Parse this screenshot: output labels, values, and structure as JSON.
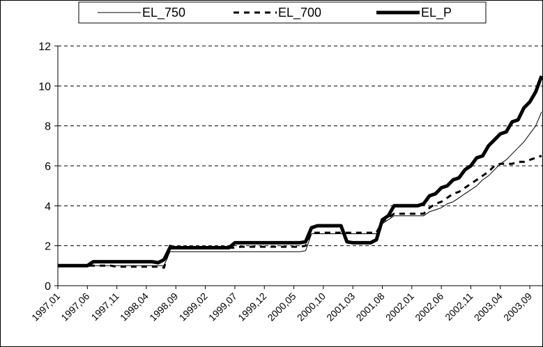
{
  "chart_data": {
    "type": "line",
    "categories": [
      "1997,01",
      null,
      null,
      null,
      null,
      "1997,06",
      null,
      null,
      null,
      null,
      "1997,11",
      null,
      null,
      null,
      null,
      "1998,04",
      null,
      null,
      null,
      null,
      "1998,09",
      null,
      null,
      null,
      null,
      "1999,02",
      null,
      null,
      null,
      null,
      "1999,07",
      null,
      null,
      null,
      null,
      "1999,12",
      null,
      null,
      null,
      null,
      "2000,05",
      null,
      null,
      null,
      null,
      "2000,10",
      null,
      null,
      null,
      null,
      "2001,03",
      null,
      null,
      null,
      null,
      "2001,08",
      null,
      null,
      null,
      null,
      "2002,01",
      null,
      null,
      null,
      null,
      "2002,06",
      null,
      null,
      null,
      null,
      "2002,11",
      null,
      null,
      null,
      null,
      "2003,04",
      null,
      null,
      null,
      null,
      "2003,09",
      null,
      null
    ],
    "series": [
      {
        "name": "EL_750",
        "color": "#000000",
        "width": 1,
        "dash": "none",
        "values": [
          1,
          1,
          1,
          1,
          1,
          1,
          1,
          1,
          1,
          1,
          1,
          1,
          1,
          1,
          1,
          1,
          1,
          1,
          1,
          1.7,
          1.7,
          1.7,
          1.7,
          1.7,
          1.7,
          1.7,
          1.7,
          1.7,
          1.7,
          1.7,
          1.7,
          1.7,
          1.7,
          1.7,
          1.7,
          1.7,
          1.7,
          1.7,
          1.7,
          1.7,
          1.7,
          1.7,
          1.75,
          2.6,
          2.6,
          2.6,
          2.6,
          2.6,
          2.6,
          2.6,
          2.6,
          2.6,
          2.6,
          2.6,
          2.6,
          3.1,
          3.3,
          3.5,
          3.5,
          3.5,
          3.5,
          3.5,
          3.5,
          3.7,
          3.8,
          3.9,
          4.1,
          4.2,
          4.4,
          4.6,
          4.8,
          5.0,
          5.3,
          5.5,
          5.8,
          6.1,
          6.3,
          6.6,
          6.9,
          7.2,
          7.6,
          8.0,
          8.7
        ]
      },
      {
        "name": "EL_700",
        "color": "#000000",
        "width": 3,
        "dash": "8 7",
        "values": [
          1,
          1,
          1,
          1,
          1,
          1,
          1,
          1,
          1,
          1,
          0.95,
          0.95,
          0.95,
          0.95,
          0.95,
          0.95,
          0.95,
          0.95,
          0.9,
          2.0,
          1.9,
          1.9,
          1.9,
          1.9,
          1.9,
          1.9,
          1.9,
          1.9,
          1.9,
          1.9,
          1.9,
          1.95,
          1.95,
          1.95,
          1.95,
          1.95,
          1.95,
          1.95,
          1.95,
          1.95,
          1.95,
          1.95,
          2.0,
          2.65,
          2.65,
          2.65,
          2.65,
          2.65,
          2.65,
          2.65,
          2.65,
          2.65,
          2.65,
          2.65,
          2.65,
          3.2,
          3.4,
          3.6,
          3.6,
          3.6,
          3.6,
          3.6,
          3.6,
          3.9,
          4.1,
          4.2,
          4.4,
          4.6,
          4.7,
          4.9,
          5.1,
          5.3,
          5.5,
          5.7,
          6.0,
          6.1,
          6.1,
          6.1,
          6.2,
          6.2,
          6.3,
          6.4,
          6.5
        ]
      },
      {
        "name": "EL_P",
        "color": "#000000",
        "width": 5,
        "dash": "none",
        "values": [
          1,
          1,
          1,
          1,
          1,
          1,
          1.2,
          1.2,
          1.2,
          1.2,
          1.2,
          1.2,
          1.2,
          1.2,
          1.2,
          1.2,
          1.2,
          1.15,
          1.3,
          1.9,
          1.9,
          1.9,
          1.9,
          1.9,
          1.9,
          1.9,
          1.9,
          1.9,
          1.9,
          1.9,
          2.15,
          2.15,
          2.15,
          2.15,
          2.15,
          2.15,
          2.15,
          2.15,
          2.15,
          2.15,
          2.15,
          2.15,
          2.2,
          2.9,
          3.0,
          3.0,
          3.0,
          3.0,
          3.0,
          2.2,
          2.15,
          2.15,
          2.15,
          2.15,
          2.3,
          3.3,
          3.5,
          4.0,
          4.0,
          4.0,
          4.0,
          4.0,
          4.1,
          4.5,
          4.6,
          4.9,
          5.0,
          5.3,
          5.4,
          5.8,
          6.0,
          6.4,
          6.5,
          7.0,
          7.3,
          7.6,
          7.7,
          8.2,
          8.3,
          8.9,
          9.2,
          9.7,
          10.5
        ]
      }
    ],
    "ylim": [
      0,
      12
    ],
    "yticks": [
      0,
      2,
      4,
      6,
      8,
      10,
      12
    ],
    "grid": true,
    "legend": "top"
  }
}
